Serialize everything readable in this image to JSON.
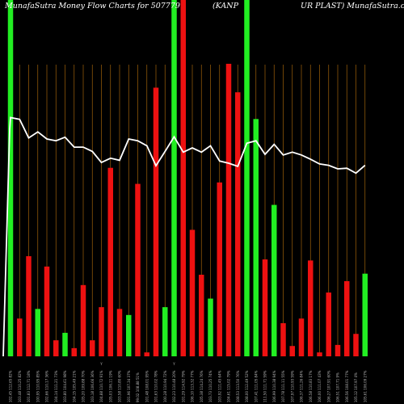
{
  "header": {
    "left": "MunafaSutra  Money Flow  Charts for 507779",
    "middle": "(KANP",
    "right": "UR PLAST) MunafaSutra.com"
  },
  "colors": {
    "background": "#000000",
    "grid": "#a0620a",
    "up": "#22ee22",
    "down": "#ee1111",
    "line": "#ffffff",
    "label": "#bbbbbb"
  },
  "chart_data": {
    "type": "bar",
    "title": "MunafaSutra Money Flow Charts for 507779 (KANPUR PLAST)",
    "ylim": [
      0,
      100
    ],
    "bars": [
      {
        "label": "102.45 112.65 82%",
        "dir": "up",
        "value": 100
      },
      {
        "label": "103.48 110.25 82%",
        "dir": "down",
        "value": 10.6
      },
      {
        "label": "101.83 112.71 18%",
        "dir": "down",
        "value": 28.1
      },
      {
        "label": "100.95 110.95 85%",
        "dir": "up",
        "value": 13.3
      },
      {
        "label": "102.66 110.17 36%",
        "dir": "down",
        "value": 25.2
      },
      {
        "label": "104.14 111.21 73%",
        "dir": "down",
        "value": 4.5
      },
      {
        "label": "103.80 104.61 98%",
        "dir": "up",
        "value": 6.6
      },
      {
        "label": "104.15 105.49 21%",
        "dir": "down",
        "value": 2.3
      },
      {
        "label": "105.20 109.88 70%",
        "dir": "down",
        "value": 20.0
      },
      {
        "label": "103.18 106.66 36%",
        "dir": "down",
        "value": 4.5
      },
      {
        "label": "104.88 110.72 91%",
        "dir": "down",
        "value": 13.8
      },
      {
        "label": "105.03 106.11 19%",
        "dir": "down",
        "value": 52.9
      },
      {
        "label": "103.58 110.80 60%",
        "dir": "down",
        "value": 13.3
      },
      {
        "label": "101.96 107.34 37%",
        "dir": "up",
        "value": 11.6
      },
      {
        "label": "99.02 108.88 51%",
        "dir": "down",
        "value": 48.4
      },
      {
        "label": "101.48 108.01 95%",
        "dir": "down",
        "value": 1.1
      },
      {
        "label": "101.63 110.02 78%",
        "dir": "down",
        "value": 75.4
      },
      {
        "label": "100.28 110.94 72%",
        "dir": "up",
        "value": 13.8
      },
      {
        "label": "102.23 110.48 20%",
        "dir": "up",
        "value": 100
      },
      {
        "label": "101.29 114.92 79%",
        "dir": "down",
        "value": 100
      },
      {
        "label": "106.10 113.32 77%",
        "dir": "down",
        "value": 35.5
      },
      {
        "label": "105.38 114.24 76%",
        "dir": "down",
        "value": 22.9
      },
      {
        "label": "103.73 110.25 74%",
        "dir": "up",
        "value": 16.2
      },
      {
        "label": "103.92 111.45 64%",
        "dir": "down",
        "value": 48.8
      },
      {
        "label": "104.61 115.02 79%",
        "dir": "down",
        "value": 82.1
      },
      {
        "label": "108.53 113.50 76%",
        "dir": "down",
        "value": 74.1
      },
      {
        "label": "108.00 112.49 52%",
        "dir": "up",
        "value": 100
      },
      {
        "label": "107.41 111.05 84%",
        "dir": "up",
        "value": 66.6
      },
      {
        "label": "111.50 111.71 59%",
        "dir": "down",
        "value": 27.2
      },
      {
        "label": "106.99 110.38 94%",
        "dir": "up",
        "value": 42.5
      },
      {
        "label": "107.78 111.11 55%",
        "dir": "down",
        "value": 9.3
      },
      {
        "label": "107.97 110.93 59%",
        "dir": "down",
        "value": 2.9
      },
      {
        "label": "106.37 111.26 84%",
        "dir": "down",
        "value": 10.6
      },
      {
        "label": "106.58 110.83 17%",
        "dir": "down",
        "value": 26.9
      },
      {
        "label": "106.00 111.07 43%",
        "dir": "down",
        "value": 1.1
      },
      {
        "label": "106.27 107.91 60%",
        "dir": "down",
        "value": 17.9
      },
      {
        "label": "106.51 107.71 9%",
        "dir": "down",
        "value": 3.2
      },
      {
        "label": "106.56 108.01 77%",
        "dir": "down",
        "value": 21.1
      },
      {
        "label": "105.12 107.97 4%",
        "dir": "down",
        "value": 6.3
      },
      {
        "label": "105.61 106.09 27%",
        "dir": "up",
        "value": 23.2
      }
    ],
    "line": {
      "name": "price",
      "ylim": [
        0,
        100
      ],
      "values": [
        67.0,
        66.5,
        61.3,
        63.0,
        61.0,
        60.5,
        61.5,
        58.7,
        58.7,
        57.5,
        54.4,
        55.6,
        55.0,
        61.0,
        60.5,
        59.1,
        53.5,
        57.5,
        61.6,
        57.3,
        58.5,
        57.3,
        59.1,
        54.8,
        54.2,
        53.3,
        59.8,
        60.5,
        56.7,
        59.5,
        56.5,
        57.3,
        56.5,
        55.3,
        54.0,
        53.6,
        52.6,
        52.8,
        51.4,
        53.6
      ]
    },
    "axis_labels": [
      "Y",
      "Y",
      "Y",
      "Y",
      "Y",
      "Y",
      "Y",
      "Y",
      "Y",
      "Y",
      "Y",
      "Y",
      "Y",
      "Y",
      "Y",
      "Y",
      "Y",
      "Y",
      "Y",
      "Y",
      "Y",
      "Y",
      "Y",
      "Y",
      "Y",
      "Y",
      "Y",
      "Y",
      "Y",
      "Y",
      "Y",
      "Y",
      "Y",
      "Y",
      "Y",
      "Y",
      "Y",
      "Y",
      "Y",
      "Y"
    ]
  }
}
